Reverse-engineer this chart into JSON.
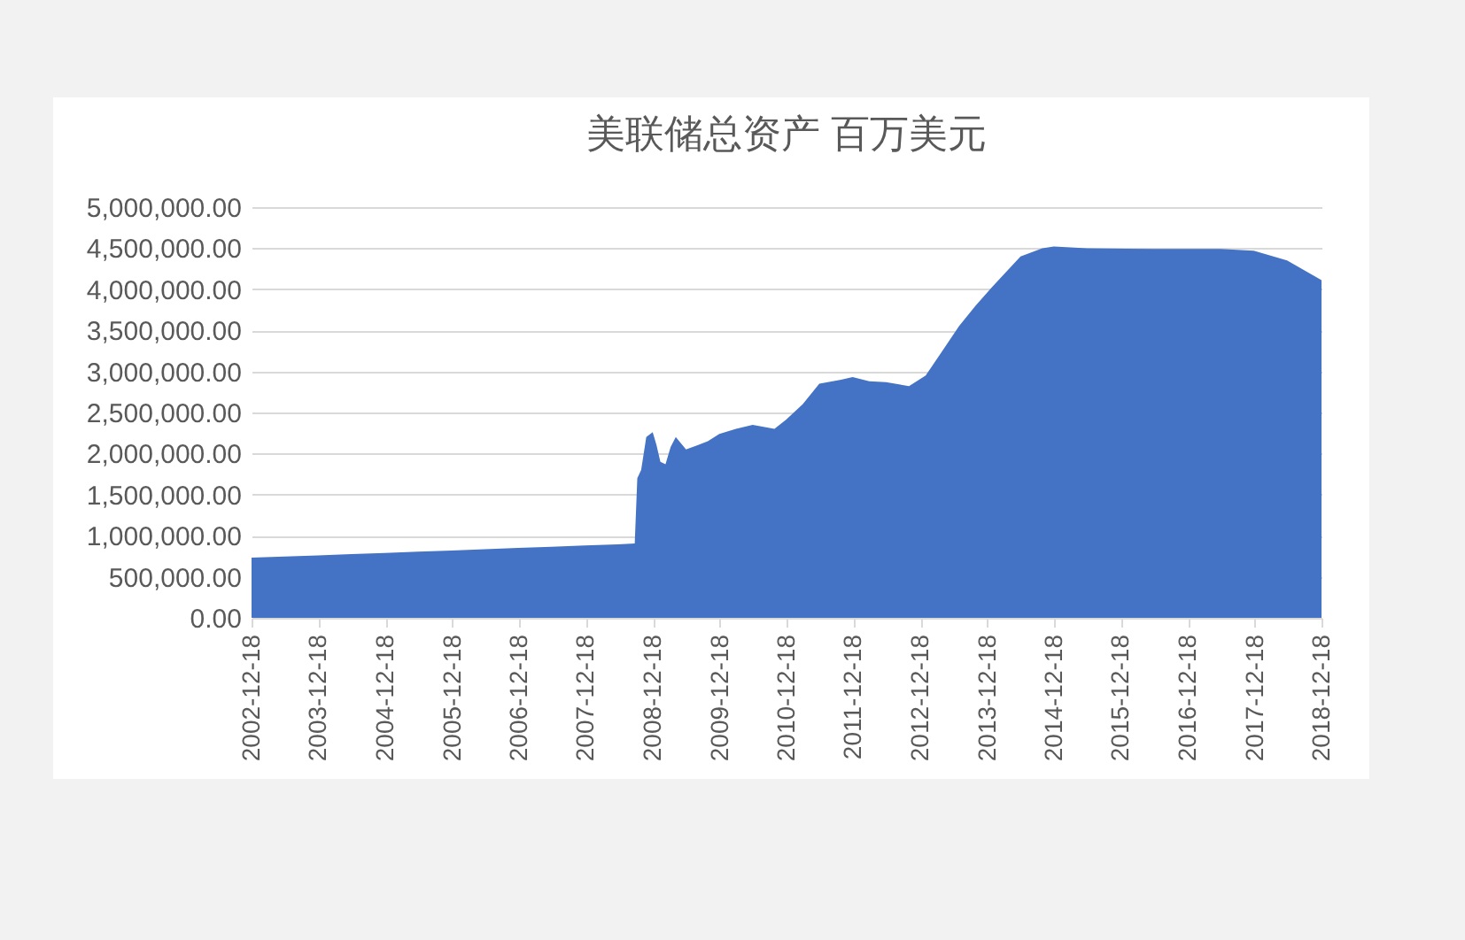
{
  "chart_data": {
    "type": "area",
    "title": "美联储总资产 百万美元",
    "x": [
      "2002-12-18",
      "2003-06-18",
      "2003-12-17",
      "2004-06-16",
      "2004-12-15",
      "2005-06-15",
      "2005-12-14",
      "2006-06-14",
      "2006-12-13",
      "2007-06-13",
      "2007-12-12",
      "2008-06-11",
      "2008-09-10",
      "2008-09-24",
      "2008-10-15",
      "2008-11-12",
      "2008-12-17",
      "2009-01-07",
      "2009-01-28",
      "2009-02-25",
      "2009-03-25",
      "2009-04-22",
      "2009-06-17",
      "2009-08-19",
      "2009-10-14",
      "2009-12-16",
      "2010-03-17",
      "2010-06-16",
      "2010-10-13",
      "2010-12-15",
      "2011-03-16",
      "2011-06-15",
      "2011-10-12",
      "2011-12-14",
      "2012-03-14",
      "2012-06-13",
      "2012-10-17",
      "2013-01-16",
      "2013-04-17",
      "2013-07-17",
      "2013-10-16",
      "2014-01-15",
      "2014-06-18",
      "2014-10-15",
      "2014-12-17",
      "2015-06-17",
      "2016-06-15",
      "2017-06-14",
      "2017-12-13",
      "2018-06-13",
      "2018-12-18"
    ],
    "values": [
      733000,
      745000,
      760000,
      775000,
      790000,
      805000,
      820000,
      835000,
      850000,
      865000,
      880000,
      895000,
      905000,
      1700000,
      1800000,
      2200000,
      2260000,
      2100000,
      1900000,
      1870000,
      2080000,
      2200000,
      2050000,
      2100000,
      2150000,
      2240000,
      2300000,
      2350000,
      2300000,
      2410000,
      2600000,
      2850000,
      2900000,
      2930000,
      2880000,
      2870000,
      2820000,
      2950000,
      3250000,
      3550000,
      3800000,
      4030000,
      4400000,
      4500000,
      4520000,
      4500000,
      4490000,
      4490000,
      4470000,
      4350000,
      4110000
    ],
    "color": "#4472c4",
    "xlim": [
      "2002-12-18",
      "2018-12-18"
    ],
    "xticks": [
      "2002-12-18",
      "2003-12-18",
      "2004-12-18",
      "2005-12-18",
      "2006-12-18",
      "2007-12-18",
      "2008-12-18",
      "2009-12-18",
      "2010-12-18",
      "2011-12-18",
      "2012-12-18",
      "2013-12-18",
      "2014-12-18",
      "2015-12-18",
      "2016-12-18",
      "2017-12-18",
      "2018-12-18"
    ],
    "ylim": [
      0,
      5000000
    ],
    "yticks": [
      {
        "value": 0,
        "label": "0.00"
      },
      {
        "value": 500000,
        "label": "500,000.00"
      },
      {
        "value": 1000000,
        "label": "1,000,000.00"
      },
      {
        "value": 1500000,
        "label": "1,500,000.00"
      },
      {
        "value": 2000000,
        "label": "2,000,000.00"
      },
      {
        "value": 2500000,
        "label": "2,500,000.00"
      },
      {
        "value": 3000000,
        "label": "3,000,000.00"
      },
      {
        "value": 3500000,
        "label": "3,500,000.00"
      },
      {
        "value": 4000000,
        "label": "4,000,000.00"
      },
      {
        "value": 4500000,
        "label": "4,500,000.00"
      },
      {
        "value": 5000000,
        "label": "5,000,000.00"
      }
    ],
    "grid": "y"
  }
}
